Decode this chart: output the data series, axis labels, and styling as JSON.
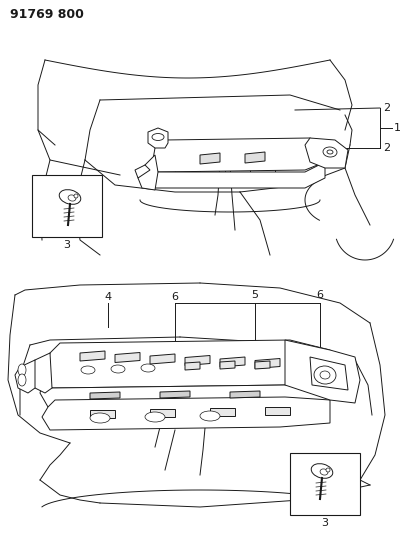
{
  "title": "91769 800",
  "bg": "#ffffff",
  "lc": "#1a1a1a",
  "figsize": [
    4.01,
    5.33
  ],
  "dpi": 100
}
